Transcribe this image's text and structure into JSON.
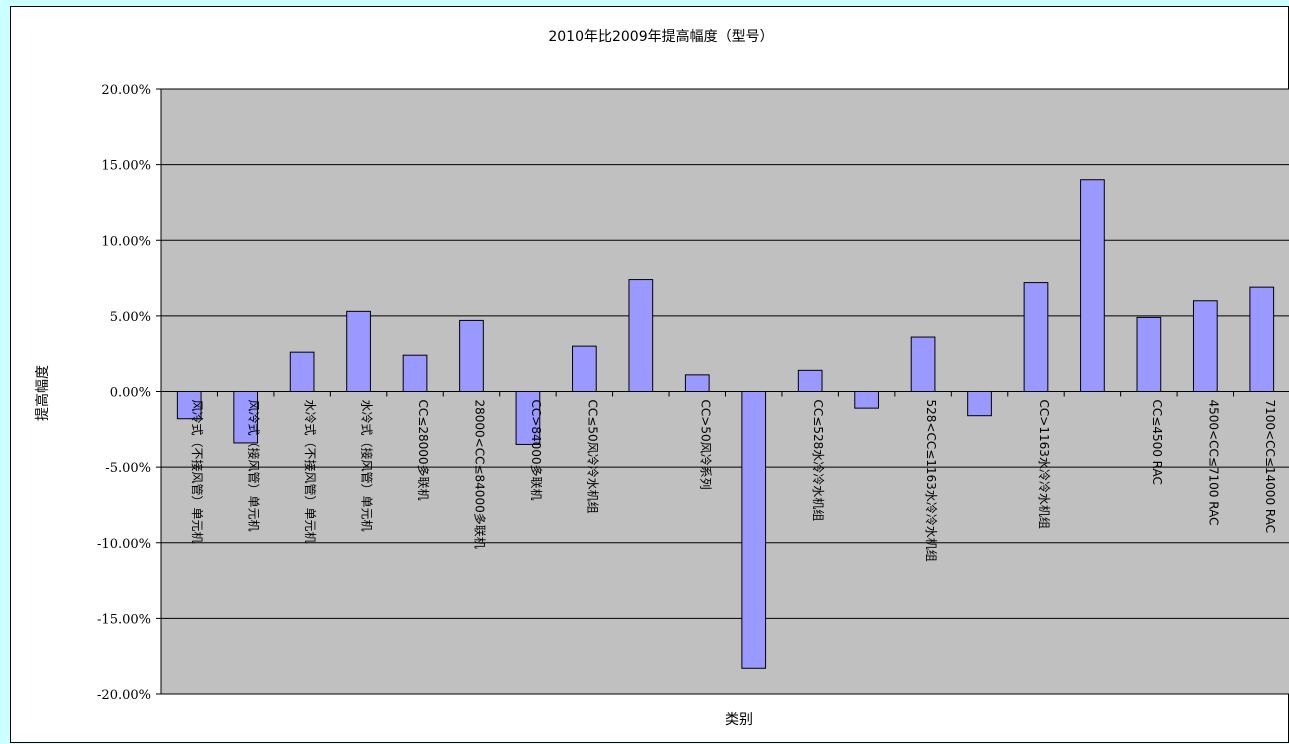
{
  "chart_data": {
    "type": "bar",
    "title": "2010年比2009年提高幅度（型号）",
    "xlabel": "类别",
    "ylabel": "提高幅度",
    "ylim": [
      -20,
      20
    ],
    "yticks": [
      20,
      15,
      10,
      5,
      0,
      -5,
      -10,
      -15,
      -20
    ],
    "ytick_labels": [
      "20.00%",
      "15.00%",
      "10.00%",
      "5.00%",
      "0.00%",
      "-5.00%",
      "-10.00%",
      "-15.00%",
      "-20.00%"
    ],
    "grid": true,
    "legend": "none",
    "categories": [
      "风冷式（不接风管）单元机",
      "风冷式（接风管）单元机",
      "水冷式（不接风管）单元机",
      "水冷式（接风管）单元机",
      "CC≤28000多联机",
      "28000<CC≤84000多联机",
      "CC>84000多联机",
      "CC≤50风冷冷水机组",
      "",
      "CC>50风冷系列",
      "",
      "CC≤528水冷冷水机组",
      "",
      "528<CC≤1163水冷冷水机组",
      "",
      "CC>1163水冷冷水机组",
      "",
      "CC≤4500 RAC",
      "4500<CC≤7100 RAC",
      "7100<CC≤14000 RAC"
    ],
    "values": [
      -1.8,
      -3.4,
      2.6,
      5.3,
      2.4,
      4.7,
      -3.5,
      3.0,
      7.4,
      1.1,
      -18.3,
      1.4,
      -1.1,
      3.6,
      -1.6,
      7.2,
      14.0,
      4.9,
      6.0,
      6.9
    ],
    "colors": {
      "plot_background": "#c0c0c0",
      "bar_fill": "#9999ff",
      "bar_stroke": "#000000",
      "page_background": "#ccffff"
    }
  }
}
